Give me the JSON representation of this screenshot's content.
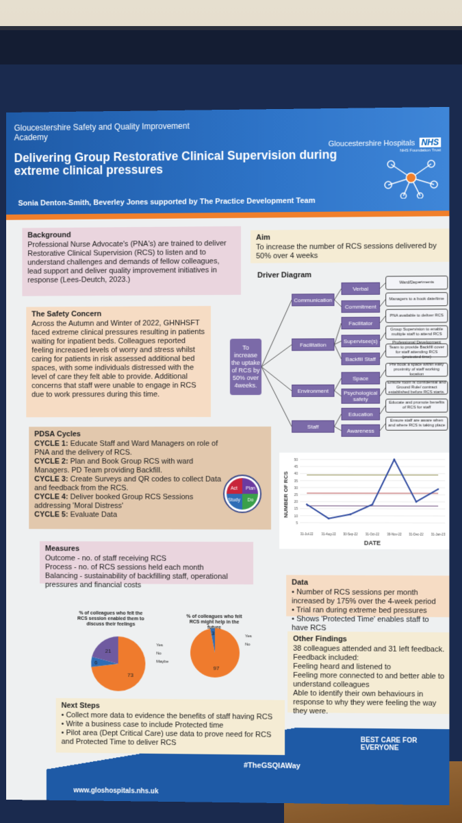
{
  "header": {
    "academy": "Gloucestershire Safety and Quality Improvement Academy",
    "org_name": "Gloucestershire Hospitals",
    "nhs": "NHS",
    "trust": "NHS Foundation Trust",
    "title": "Delivering Group Restorative Clinical Supervision during extreme clinical pressures",
    "authors": "Sonia Denton-Smith, Beverley Jones supported by The Practice Development Team"
  },
  "background": {
    "heading": "Background",
    "text": "Professional Nurse Advocate's (PNA's) are trained to deliver Restorative Clinical Supervision (RCS) to listen and to understand challenges and demands of fellow colleagues, lead support and deliver quality improvement initiatives in response (Lees-Deutch, 2023.)"
  },
  "safety": {
    "heading": "The Safety Concern",
    "text": "Across the Autumn and Winter of 2022, GHNHSFT faced extreme clinical pressures resulting in patients waiting for inpatient beds. Colleagues reported feeling increased levels of worry and stress whilst caring for patients in risk assessed additional bed spaces, with some individuals distressed with the level of care they felt able to provide. Additional concerns that staff were unable to engage in RCS due to work pressures during this time."
  },
  "pdsa": {
    "heading": "PDSA Cycles",
    "cycles": [
      {
        "label": "CYCLE 1:",
        "text": " Educate Staff and Ward Managers on role of PNA and the delivery of RCS."
      },
      {
        "label": "CYCLE 2:",
        "text": " Plan and Book Group RCS with ward Managers. PD Team providing Backfill."
      },
      {
        "label": "CYCLE 3:",
        "text": " Create Surveys and QR codes to collect Data and feedback from the RCS."
      },
      {
        "label": "CYCLE 4:",
        "text": " Deliver booked Group RCS Sessions addressing 'Moral Distress'"
      },
      {
        "label": "CYCLE 5:",
        "text": " Evaluate Data"
      }
    ],
    "wheel": {
      "act": "Act",
      "plan": "Plan",
      "study": "Study",
      "do": "Do"
    }
  },
  "measures": {
    "heading": "Measures",
    "lines": [
      "Outcome - no. of staff receiving RCS",
      "Process - no. of RCS sessions held each month",
      "Balancing - sustainability of backfilling staff, operational pressures and financial costs"
    ]
  },
  "aim": {
    "heading": "Aim",
    "text": "To increase the number of RCS sessions delivered by 50% over 4 weeks"
  },
  "driver": {
    "heading": "Driver Diagram",
    "aim": "To increase the uptake of RCS by 50% over 4weeks.",
    "primary": [
      "Communication",
      "Facilitation",
      "Environment",
      "Staff"
    ],
    "secondary": [
      "Verbal",
      "Commitment",
      "Facilitator",
      "Supervisee(s)",
      "Backfill Staff",
      "Space",
      "Psychological safety",
      "Education",
      "Awareness"
    ],
    "changes": [
      "Ward/Departments",
      "Managers to a book date/time",
      "PNA available to deliver RCS",
      "Group Supervision to enable multiple staff to attend RCS",
      "Professional Development Team to provide Backfill cover for staff attending RCS (protected time)",
      "Pre book a space within easy proximity of staff working location",
      "Ensure room is confidential and Ground Rule/ contract established before RCS starts.",
      "Educate and promote benefits of RCS for staff",
      "Ensure staff are aware when and where RCS is taking place"
    ]
  },
  "chart_data": [
    {
      "type": "line",
      "title": "",
      "xlabel": "DATE",
      "ylabel": "NUMBER OF RCS",
      "categories": [
        "31-Jul-22",
        "31-Aug-22",
        "30-Sep-22",
        "31-Oct-22",
        "30-Nov-22",
        "31-Dec-22",
        "31-Jan-23"
      ],
      "series": [
        {
          "values": [
            18,
            8,
            11,
            18,
            50,
            20,
            29
          ]
        }
      ],
      "reference_lines": [
        {
          "value": 17,
          "color": "#6b4a7a"
        },
        {
          "value": 26,
          "color": "#b5494a"
        },
        {
          "value": 39,
          "color": "#8c8a4a"
        }
      ],
      "ylim": [
        0,
        50
      ],
      "yticks": [
        5,
        10,
        15,
        20,
        25,
        30,
        35,
        40,
        45,
        50
      ],
      "grid": true
    },
    {
      "type": "pie",
      "title": "% of colleagues who felt the RCS session enabled them to discuss their feelings",
      "labels": [
        "Yes",
        "No",
        "Maybe"
      ],
      "values": [
        73,
        6,
        21
      ],
      "colors": [
        "#ef7b2d",
        "#2e6db6",
        "#6f5aa0"
      ]
    },
    {
      "type": "pie",
      "title": "% of colleagues who felt RCS might help in the future",
      "labels": [
        "Yes",
        "No"
      ],
      "values": [
        97,
        3
      ],
      "colors": [
        "#ef7b2d",
        "#2e6db6"
      ]
    }
  ],
  "data_box": {
    "heading": "Data",
    "items": [
      "Number of RCS sessions per month increased by 175% over the 4-week period",
      "Trial ran during extreme bed pressures",
      "Shows 'Protected Time' enables staff to have RCS"
    ]
  },
  "other": {
    "heading": "Other Findings",
    "lines": [
      "38 colleagues attended and 31 left feedback.",
      "Feedback included:",
      "Feeling heard and listened to",
      "Feeling more connected to and better able to understand colleagues",
      "Able to identify their own behaviours in response to why they were feeling the way they were."
    ]
  },
  "next": {
    "heading": "Next Steps",
    "items": [
      "Collect more data to evidence the benefits of staff having RCS",
      "Write a business case to include Protected time",
      "Pilot area (Dept Critical Care) use data to prove need for RCS and Protected Time to deliver RCS"
    ]
  },
  "footer": {
    "best": "BEST CARE FOR EVERYONE",
    "hashtag": "#TheGSQIAWay",
    "url": "www.gloshospitals.nhs.uk"
  }
}
